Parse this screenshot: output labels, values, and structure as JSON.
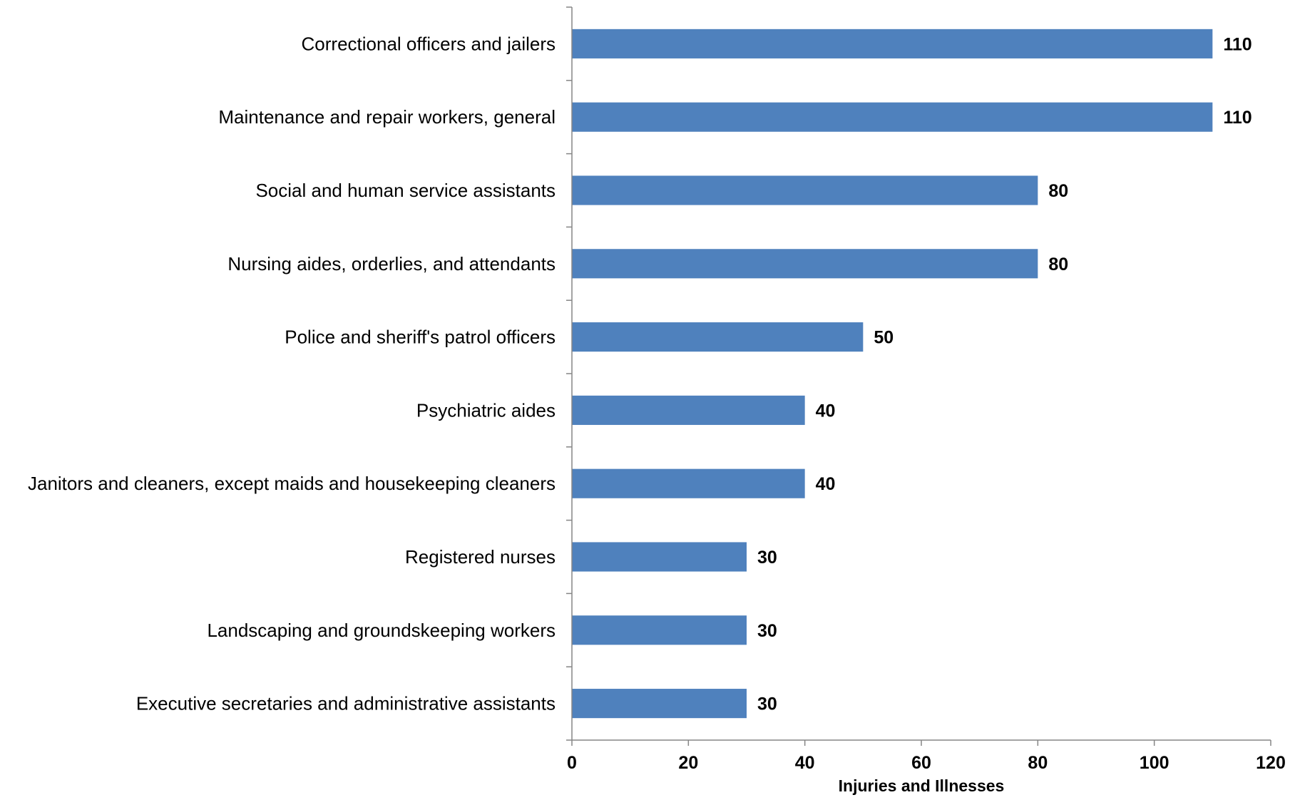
{
  "chart_data": {
    "type": "bar",
    "orientation": "horizontal",
    "title": "",
    "xlabel": "Injuries and Illnesses",
    "ylabel": "",
    "categories": [
      "Correctional officers and jailers",
      "Maintenance and repair workers, general",
      "Social and human service assistants",
      "Nursing aides, orderlies, and attendants",
      "Police and sheriff's patrol officers",
      "Psychiatric aides",
      "Janitors and cleaners, except maids and housekeeping cleaners",
      "Registered nurses",
      "Landscaping and groundskeeping workers",
      "Executive secretaries and administrative assistants"
    ],
    "values": [
      110,
      110,
      80,
      80,
      50,
      40,
      40,
      30,
      30,
      30
    ],
    "xlim": [
      0,
      120
    ],
    "xticks": [
      0,
      20,
      40,
      60,
      80,
      100,
      120
    ],
    "grid": false,
    "legend": "none",
    "bar_color": "#4F81BD",
    "axis_color": "#868686"
  }
}
